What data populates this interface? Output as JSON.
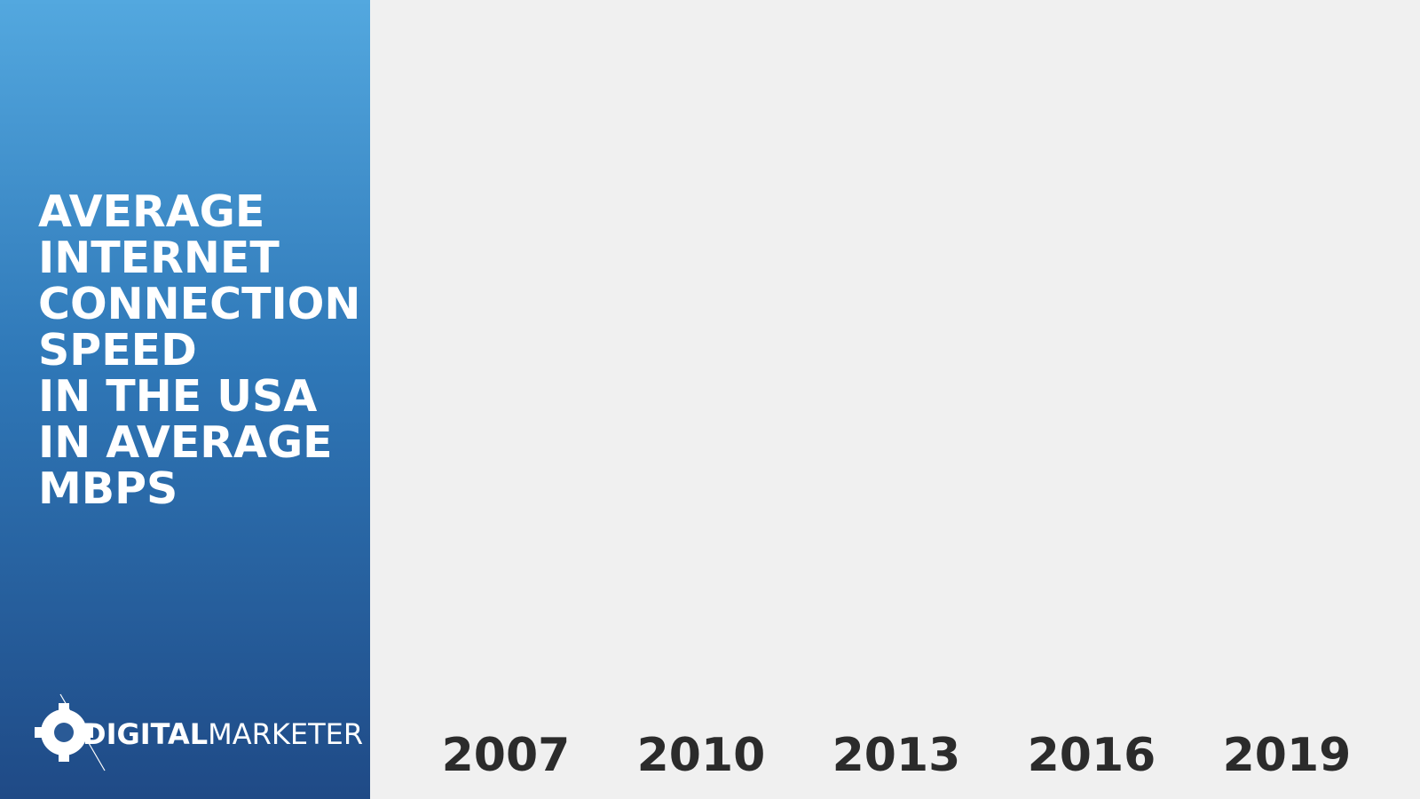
{
  "chart_data": {
    "type": "bar",
    "title": [
      "AVERAGE",
      "INTERNET",
      "CONNECTION",
      "SPEED",
      "IN THE USA",
      "IN AVERAGE",
      "MBPS"
    ],
    "categories": [
      "2007",
      "2010",
      "2013",
      "2016",
      "2019"
    ],
    "brand": {
      "bold": "DIGITAL",
      "light": "MARKETER"
    }
  }
}
